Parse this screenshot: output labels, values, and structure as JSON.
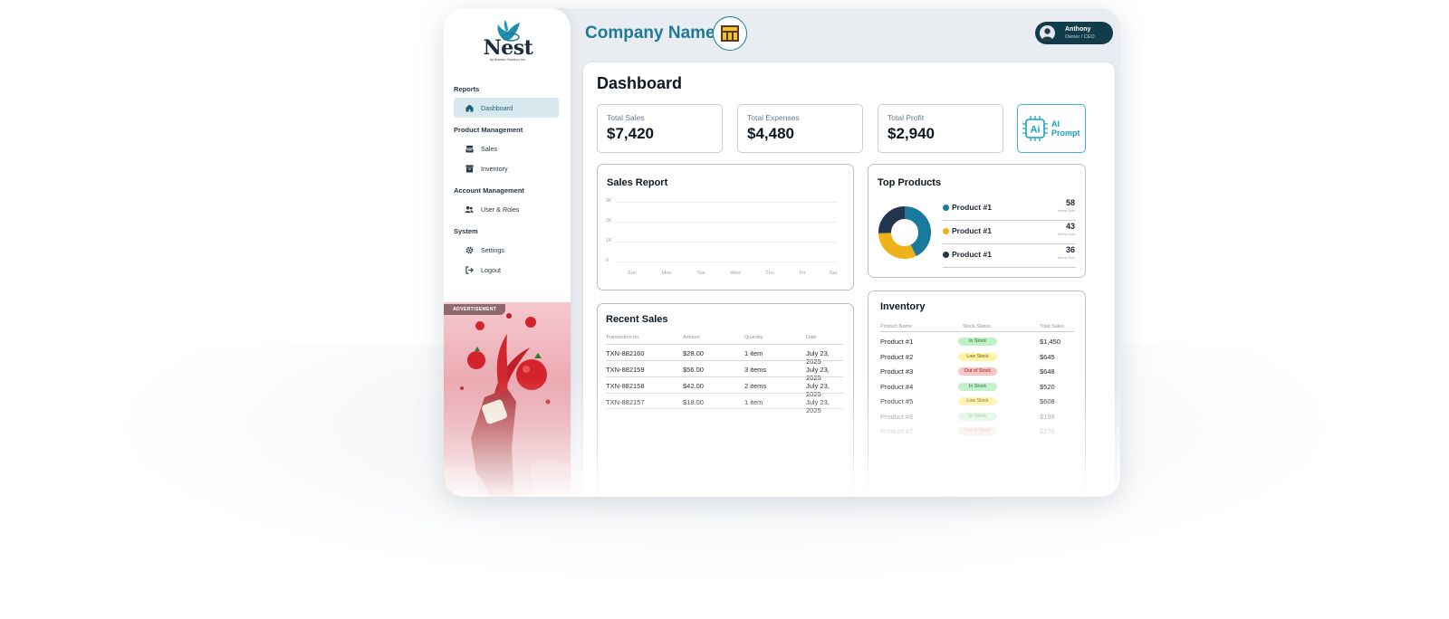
{
  "app": {
    "logo_word": "Nest",
    "logo_tagline": "by Adonis Solution Inc.",
    "company_name": "Company Name"
  },
  "user": {
    "name": "Anthony",
    "role": "Owner / CEO"
  },
  "sidebar": {
    "sections": [
      {
        "title": "Reports",
        "items": [
          {
            "label": "Dashboard",
            "icon": "home-icon",
            "active": true
          }
        ]
      },
      {
        "title": "Product Management",
        "items": [
          {
            "label": "Sales",
            "icon": "register-icon"
          },
          {
            "label": "Inventory",
            "icon": "archive-icon"
          }
        ]
      },
      {
        "title": "Account Management",
        "items": [
          {
            "label": "User & Roles",
            "icon": "users-icon"
          }
        ]
      },
      {
        "title": "System",
        "items": [
          {
            "label": "Settings",
            "icon": "gear-icon"
          },
          {
            "label": "Logout",
            "icon": "logout-icon"
          }
        ]
      }
    ],
    "ad_label": "ADVERTISEMENT"
  },
  "dashboard": {
    "title": "Dashboard",
    "stats": [
      {
        "label": "Total Sales",
        "value": "$7,420"
      },
      {
        "label": "Total Expenses",
        "value": "$4,480"
      },
      {
        "label": "Total Profit",
        "value": "$2,940"
      }
    ],
    "ai_button": {
      "line1": "AI",
      "line2": "Prompt",
      "chip_text": "Ai"
    }
  },
  "sales_report": {
    "title": "Sales Report",
    "y_ticks": [
      "3K",
      "2K",
      "1K",
      "0"
    ],
    "x_ticks": [
      "Sun",
      "Mon",
      "Tue",
      "Wed",
      "Thu",
      "Fri",
      "Sat"
    ]
  },
  "recent_sales": {
    "title": "Recent Sales",
    "columns": [
      "Transaction no.",
      "Amount",
      "Quantity",
      "Date"
    ],
    "rows": [
      {
        "txn": "TXN-882160",
        "amount": "$28.00",
        "qty": "1 item",
        "date": "July 23, 2025"
      },
      {
        "txn": "TXN-882159",
        "amount": "$56.00",
        "qty": "3 items",
        "date": "July 23, 2025"
      },
      {
        "txn": "TXN-882158",
        "amount": "$42.00",
        "qty": "2 items",
        "date": "July 23, 2025"
      },
      {
        "txn": "TXN-882157",
        "amount": "$18.00",
        "qty": "1 item",
        "date": "July 23, 2025"
      }
    ]
  },
  "top_products": {
    "title": "Top Products",
    "sub_label": "Items Sold",
    "items": [
      {
        "name": "Product #1",
        "sold": "58",
        "color": "#1a7a9c"
      },
      {
        "name": "Product #1",
        "sold": "43",
        "color": "#f0b21a"
      },
      {
        "name": "Product #1",
        "sold": "36",
        "color": "#233650"
      }
    ]
  },
  "inventory": {
    "title": "Inventory",
    "columns": [
      "Product Name",
      "Stock Status",
      "Total Sales"
    ],
    "rows": [
      {
        "name": "Product #1",
        "status": "In Stock",
        "kind": "in",
        "sales": "$1,450"
      },
      {
        "name": "Product #2",
        "status": "Low Stock",
        "kind": "low",
        "sales": "$645"
      },
      {
        "name": "Product #3",
        "status": "Out of Stock",
        "kind": "out",
        "sales": "$648"
      },
      {
        "name": "Product #4",
        "status": "In Stock",
        "kind": "in",
        "sales": "$520"
      },
      {
        "name": "Product #5",
        "status": "Low Stock",
        "kind": "low",
        "sales": "$608"
      },
      {
        "name": "Product #6",
        "status": "In Stock",
        "kind": "in",
        "sales": "$198"
      },
      {
        "name": "Product #7",
        "status": "Out of Stock",
        "kind": "out",
        "sales": "$270"
      }
    ]
  },
  "colors": {
    "accent": "#1f7a99",
    "dark": "#123b4b",
    "active_bg": "#d7e9ef"
  }
}
